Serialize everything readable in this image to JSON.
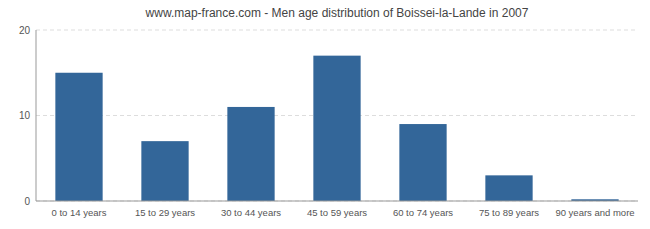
{
  "chart_data": {
    "type": "bar",
    "title": "www.map-france.com - Men age distribution of Boissei-la-Lande in 2007",
    "categories": [
      "0 to 14 years",
      "15 to 29 years",
      "30 to 44 years",
      "45 to 59 years",
      "60 to 74 years",
      "75 to 89 years",
      "90 years and more"
    ],
    "values": [
      15,
      7,
      11,
      17,
      9,
      3,
      0.2
    ],
    "color": "#336699",
    "ylim": [
      0,
      20
    ],
    "yticks": [
      0,
      10,
      20
    ],
    "grid": true
  }
}
